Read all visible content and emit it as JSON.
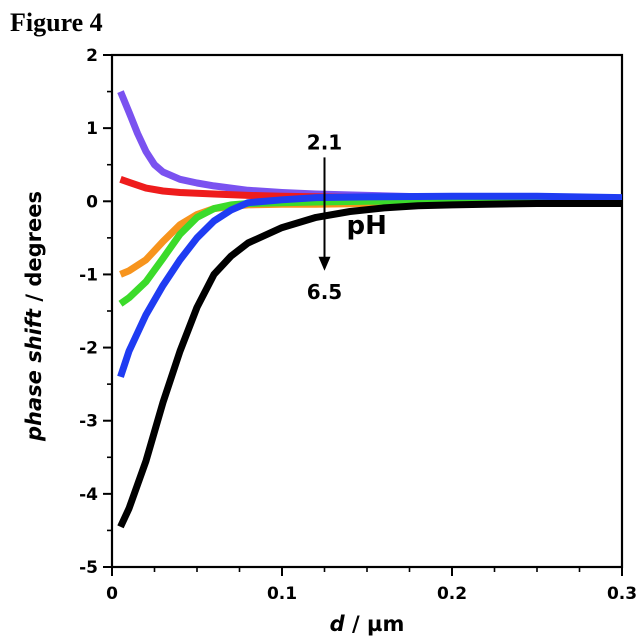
{
  "figure_label": "Figure 4",
  "chart_data": {
    "type": "line",
    "title": "",
    "xlabel_italic": "d",
    "xlabel_rest": " / µm",
    "ylabel_italic": "phase shift",
    "ylabel_rest": " / degrees",
    "xlim": [
      0,
      0.3
    ],
    "ylim": [
      -5,
      2
    ],
    "x_ticks": [
      0,
      0.1,
      0.2,
      0.3
    ],
    "x_tick_labels": [
      "0",
      "0.1",
      "0.2",
      "0.3"
    ],
    "x_minor_step": 0.025,
    "y_ticks": [
      -5,
      -4,
      -3,
      -2,
      -1,
      0,
      1,
      2
    ],
    "y_tick_labels": [
      "-5",
      "-4",
      "-3",
      "-2",
      "-1",
      "0",
      "1",
      "2"
    ],
    "y_minor_step": 0.5,
    "grid": false,
    "series": [
      {
        "color": "#7a52f0",
        "x": [
          0.005,
          0.01,
          0.015,
          0.02,
          0.025,
          0.03,
          0.04,
          0.05,
          0.06,
          0.08,
          0.1,
          0.12,
          0.15,
          0.2,
          0.25,
          0.3
        ],
        "y": [
          1.5,
          1.22,
          0.93,
          0.68,
          0.5,
          0.4,
          0.3,
          0.25,
          0.21,
          0.15,
          0.12,
          0.1,
          0.08,
          0.05,
          0.04,
          0.03
        ]
      },
      {
        "color": "#ee1c1c",
        "x": [
          0.005,
          0.01,
          0.02,
          0.03,
          0.04,
          0.06,
          0.08,
          0.1,
          0.15,
          0.2,
          0.25,
          0.3
        ],
        "y": [
          0.3,
          0.26,
          0.18,
          0.14,
          0.12,
          0.1,
          0.08,
          0.07,
          0.05,
          0.04,
          0.03,
          0.03
        ]
      },
      {
        "color": "#f7941d",
        "x": [
          0.005,
          0.01,
          0.02,
          0.03,
          0.04,
          0.05,
          0.06,
          0.07,
          0.08,
          0.1,
          0.12,
          0.15,
          0.2,
          0.25,
          0.3
        ],
        "y": [
          -1.0,
          -0.95,
          -0.8,
          -0.55,
          -0.32,
          -0.18,
          -0.1,
          -0.07,
          -0.05,
          -0.04,
          -0.04,
          -0.03,
          -0.02,
          -0.02,
          -0.02
        ]
      },
      {
        "color": "#3bdb2a",
        "x": [
          0.005,
          0.01,
          0.02,
          0.03,
          0.04,
          0.05,
          0.06,
          0.07,
          0.08,
          0.1,
          0.12,
          0.15,
          0.2,
          0.25,
          0.3
        ],
        "y": [
          -1.4,
          -1.32,
          -1.1,
          -0.78,
          -0.45,
          -0.22,
          -0.1,
          -0.05,
          -0.03,
          -0.02,
          -0.01,
          0.0,
          0.0,
          0.0,
          0.0
        ]
      },
      {
        "color": "#1f3cf2",
        "x": [
          0.005,
          0.01,
          0.02,
          0.03,
          0.04,
          0.05,
          0.06,
          0.07,
          0.08,
          0.1,
          0.12,
          0.15,
          0.2,
          0.25,
          0.3
        ],
        "y": [
          -2.4,
          -2.05,
          -1.55,
          -1.15,
          -0.8,
          -0.5,
          -0.27,
          -0.12,
          -0.02,
          0.02,
          0.05,
          0.06,
          0.07,
          0.07,
          0.05
        ]
      },
      {
        "color": "#000000",
        "x": [
          0.005,
          0.01,
          0.02,
          0.03,
          0.04,
          0.05,
          0.06,
          0.07,
          0.08,
          0.1,
          0.12,
          0.14,
          0.16,
          0.18,
          0.2,
          0.22,
          0.25,
          0.3
        ],
        "y": [
          -4.45,
          -4.2,
          -3.55,
          -2.75,
          -2.05,
          -1.45,
          -1.0,
          -0.75,
          -0.57,
          -0.36,
          -0.22,
          -0.14,
          -0.09,
          -0.06,
          -0.05,
          -0.04,
          -0.03,
          -0.03
        ]
      }
    ],
    "annotations": {
      "ph_start": "2.1",
      "ph_end": "6.5",
      "ph_label": "pH",
      "arrow_x": 0.125,
      "arrow_y_from": 0.6,
      "arrow_y_to": -0.95
    }
  }
}
